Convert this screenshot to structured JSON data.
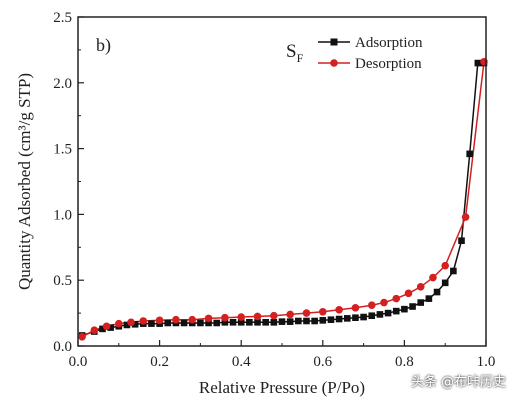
{
  "chart_data": {
    "type": "line",
    "panel_label": "b)",
    "sample_label": "S",
    "sample_subscript": "F",
    "xlabel": "Relative Pressure (P/Po)",
    "ylabel": "Quantity Adsorbed (cm³/g STP)",
    "xlim": [
      0.0,
      1.0
    ],
    "ylim": [
      0.0,
      2.5
    ],
    "xticks": [
      "0.0",
      "0.2",
      "0.4",
      "0.6",
      "0.8",
      "1.0"
    ],
    "yticks": [
      "0.0",
      "0.5",
      "1.0",
      "1.5",
      "2.0",
      "2.5"
    ],
    "xtick_values": [
      0.0,
      0.2,
      0.4,
      0.6,
      0.8,
      1.0
    ],
    "ytick_values": [
      0.0,
      0.5,
      1.0,
      1.5,
      2.0,
      2.5
    ],
    "grid": false,
    "legend_position": "top-right",
    "series": [
      {
        "name": "Adsorption",
        "color": "#111111",
        "marker": "square",
        "x": [
          0.01,
          0.04,
          0.06,
          0.08,
          0.1,
          0.12,
          0.14,
          0.16,
          0.18,
          0.2,
          0.22,
          0.24,
          0.26,
          0.28,
          0.3,
          0.32,
          0.34,
          0.36,
          0.38,
          0.4,
          0.42,
          0.44,
          0.46,
          0.48,
          0.5,
          0.52,
          0.54,
          0.56,
          0.58,
          0.6,
          0.62,
          0.64,
          0.66,
          0.68,
          0.7,
          0.72,
          0.74,
          0.76,
          0.78,
          0.8,
          0.82,
          0.84,
          0.86,
          0.88,
          0.9,
          0.92,
          0.94,
          0.96,
          0.98,
          0.995
        ],
        "y": [
          0.08,
          0.11,
          0.13,
          0.14,
          0.15,
          0.16,
          0.165,
          0.17,
          0.17,
          0.17,
          0.175,
          0.175,
          0.175,
          0.175,
          0.175,
          0.175,
          0.175,
          0.18,
          0.18,
          0.18,
          0.18,
          0.18,
          0.18,
          0.18,
          0.185,
          0.185,
          0.19,
          0.19,
          0.19,
          0.195,
          0.2,
          0.205,
          0.21,
          0.215,
          0.22,
          0.23,
          0.24,
          0.25,
          0.265,
          0.28,
          0.3,
          0.33,
          0.36,
          0.41,
          0.48,
          0.57,
          0.8,
          1.46,
          2.15,
          2.15
        ]
      },
      {
        "name": "Desorption",
        "color": "#d42020",
        "marker": "circle",
        "x": [
          0.01,
          0.04,
          0.07,
          0.1,
          0.13,
          0.16,
          0.2,
          0.24,
          0.28,
          0.32,
          0.36,
          0.4,
          0.44,
          0.48,
          0.52,
          0.56,
          0.6,
          0.64,
          0.68,
          0.72,
          0.75,
          0.78,
          0.81,
          0.84,
          0.87,
          0.9,
          0.95,
          0.995
        ],
        "y": [
          0.07,
          0.12,
          0.15,
          0.17,
          0.18,
          0.19,
          0.195,
          0.2,
          0.2,
          0.21,
          0.215,
          0.22,
          0.225,
          0.23,
          0.24,
          0.25,
          0.26,
          0.275,
          0.29,
          0.31,
          0.33,
          0.36,
          0.4,
          0.45,
          0.52,
          0.61,
          0.98,
          2.16
        ]
      }
    ]
  },
  "watermark": "头条 @布咔历史"
}
